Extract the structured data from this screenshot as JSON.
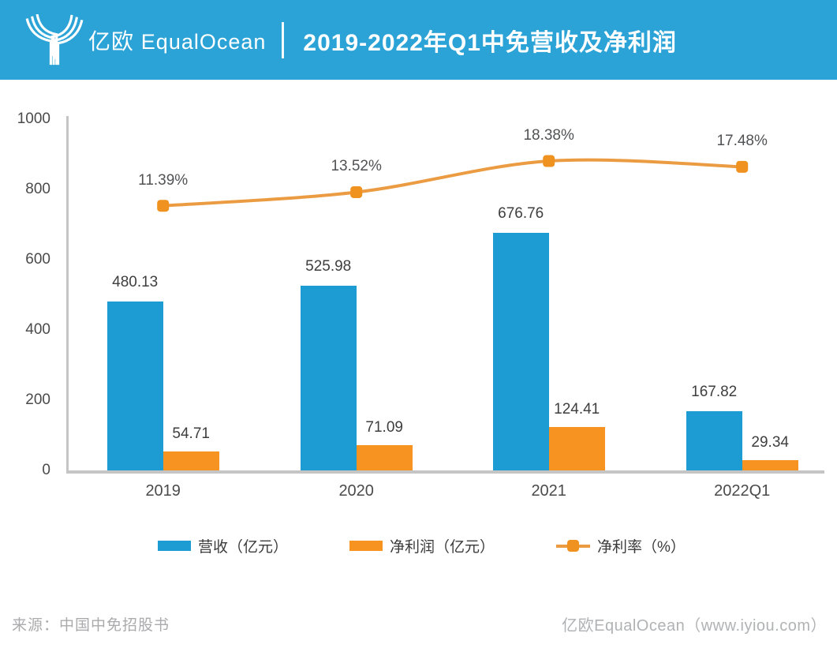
{
  "header": {
    "logo_zh": "亿欧",
    "logo_en": "EqualOcean",
    "title": "2019-2022年Q1中免营收及净利润"
  },
  "colors": {
    "banner": "#2ba3d7",
    "revenue_bar": "#1c9cd3",
    "profit_bar": "#f79321",
    "line": "#eb9c42",
    "marker": "#f0921f",
    "axis": "#c5c5c5",
    "footer_rule": "#4e9bab"
  },
  "chart_data": {
    "type": "bar",
    "title": "2019-2022年Q1中免营收及净利润",
    "categories": [
      "2019",
      "2020",
      "2021",
      "2022Q1"
    ],
    "series": [
      {
        "name": "营收（亿元）",
        "type": "bar",
        "values": [
          480.13,
          525.98,
          676.76,
          167.82
        ]
      },
      {
        "name": "净利润（亿元）",
        "type": "bar",
        "values": [
          54.71,
          71.09,
          124.41,
          29.34
        ]
      },
      {
        "name": "净利率（%）",
        "type": "line",
        "values": [
          11.39,
          13.52,
          18.38,
          17.48
        ],
        "labels": [
          "11.39%",
          "13.52%",
          "18.38%",
          "17.48%"
        ]
      }
    ],
    "y_axis_ticks": [
      0,
      200,
      400,
      600,
      800,
      1000
    ],
    "ylim": [
      0,
      1000
    ],
    "grid": false,
    "legend_position": "bottom"
  },
  "legend": {
    "items": [
      {
        "label": "营收（亿元）",
        "swatch": "blue-rect"
      },
      {
        "label": "净利润（亿元）",
        "swatch": "orange-rect"
      },
      {
        "label": "净利率（%）",
        "swatch": "orange-line-marker"
      }
    ]
  },
  "footer": {
    "source": "来源：中国中免招股书",
    "credit": "亿欧EqualOcean（www.iyiou.com）"
  }
}
